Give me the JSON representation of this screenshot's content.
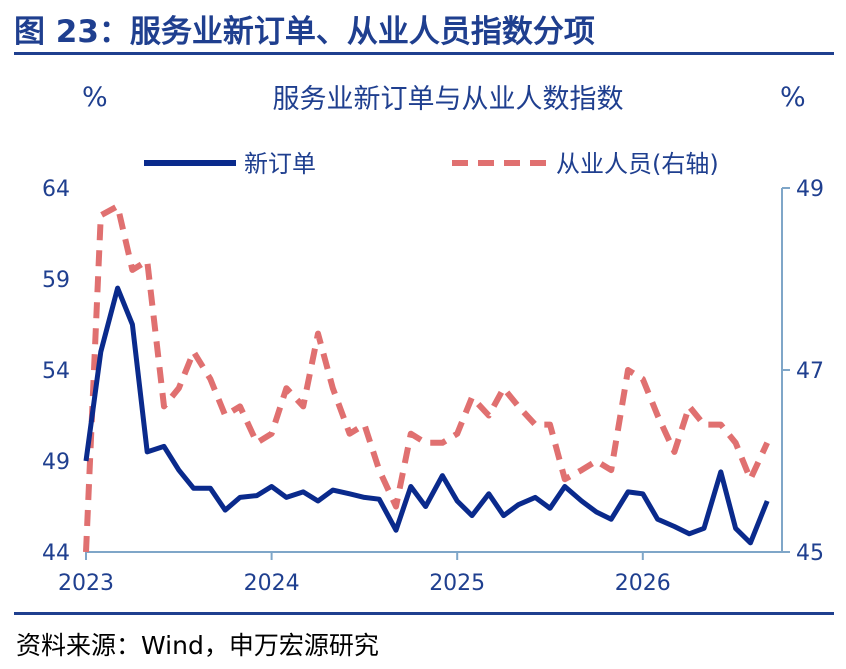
{
  "figure_title": "图 23：服务业新订单、从业人员指数分项",
  "source": "资料来源：Wind，申万宏源研究",
  "colors": {
    "navy": "#0a2a8c",
    "red": "#e07070",
    "axis_text": "#1f3f8f",
    "right_axis": "#7fa6c8"
  },
  "chart_data": {
    "type": "line",
    "title": "服务业新订单与从业人数指数",
    "y_unit_left": "%",
    "y_unit_right": "%",
    "x_range": [
      2023.0,
      2026.75
    ],
    "x_ticks": [
      2023,
      2024,
      2025,
      2026
    ],
    "x_tick_labels": [
      "2023",
      "2024",
      "2025",
      "2026"
    ],
    "ylim_left": [
      44,
      64
    ],
    "yticks_left": [
      44,
      49,
      54,
      59,
      64
    ],
    "ylim_right": [
      45,
      49
    ],
    "yticks_right": [
      45,
      47,
      49
    ],
    "legend_position": "top",
    "series": [
      {
        "name": "新订单",
        "axis": "left",
        "style": "solid",
        "color": "#0a2a8c",
        "x": [
          2023.0,
          2023.08,
          2023.17,
          2023.25,
          2023.33,
          2023.42,
          2023.5,
          2023.58,
          2023.67,
          2023.75,
          2023.83,
          2023.92,
          2024.0,
          2024.08,
          2024.17,
          2024.25,
          2024.33,
          2024.42,
          2024.5,
          2024.58,
          2024.67,
          2024.75,
          2024.83,
          2024.92,
          2025.0,
          2025.08,
          2025.17,
          2025.25,
          2025.33,
          2025.42,
          2025.5,
          2025.58,
          2025.67,
          2025.75,
          2025.83,
          2025.92,
          2026.0,
          2026.08,
          2026.17,
          2026.25,
          2026.33,
          2026.42,
          2026.5,
          2026.58,
          2026.67
        ],
        "values": [
          49.0,
          55.0,
          58.5,
          56.5,
          49.5,
          49.8,
          48.5,
          47.5,
          47.5,
          46.3,
          47.0,
          47.1,
          47.6,
          47.0,
          47.3,
          46.8,
          47.4,
          47.2,
          47.0,
          46.9,
          45.2,
          47.6,
          46.5,
          48.2,
          46.8,
          46.0,
          47.2,
          46.0,
          46.6,
          47.0,
          46.4,
          47.6,
          46.8,
          46.2,
          45.8,
          47.3,
          47.2,
          45.8,
          45.4,
          45.0,
          45.3,
          48.4,
          45.3,
          44.5,
          46.8
        ]
      },
      {
        "name": "从业人员(右轴)",
        "axis": "right",
        "style": "dashed",
        "color": "#e07070",
        "x": [
          2023.0,
          2023.08,
          2023.17,
          2023.25,
          2023.33,
          2023.42,
          2023.5,
          2023.58,
          2023.67,
          2023.75,
          2023.83,
          2023.92,
          2024.0,
          2024.08,
          2024.17,
          2024.25,
          2024.33,
          2024.42,
          2024.5,
          2024.58,
          2024.67,
          2024.75,
          2024.83,
          2024.92,
          2025.0,
          2025.08,
          2025.17,
          2025.25,
          2025.33,
          2025.42,
          2025.5,
          2025.58,
          2025.67,
          2025.75,
          2025.83,
          2025.92,
          2026.0,
          2026.08,
          2026.17,
          2026.25,
          2026.33,
          2026.42,
          2026.5,
          2026.58,
          2026.67
        ],
        "values": [
          45.0,
          48.7,
          48.8,
          48.1,
          48.2,
          46.6,
          46.8,
          47.2,
          46.9,
          46.5,
          46.6,
          46.2,
          46.3,
          46.8,
          46.6,
          47.4,
          46.8,
          46.3,
          46.4,
          45.9,
          45.5,
          46.3,
          46.2,
          46.2,
          46.3,
          46.7,
          46.5,
          46.8,
          46.6,
          46.4,
          46.4,
          45.8,
          45.9,
          46.0,
          45.9,
          47.0,
          46.9,
          46.5,
          46.1,
          46.6,
          46.4,
          46.4,
          46.2,
          45.8,
          46.2
        ]
      }
    ]
  }
}
